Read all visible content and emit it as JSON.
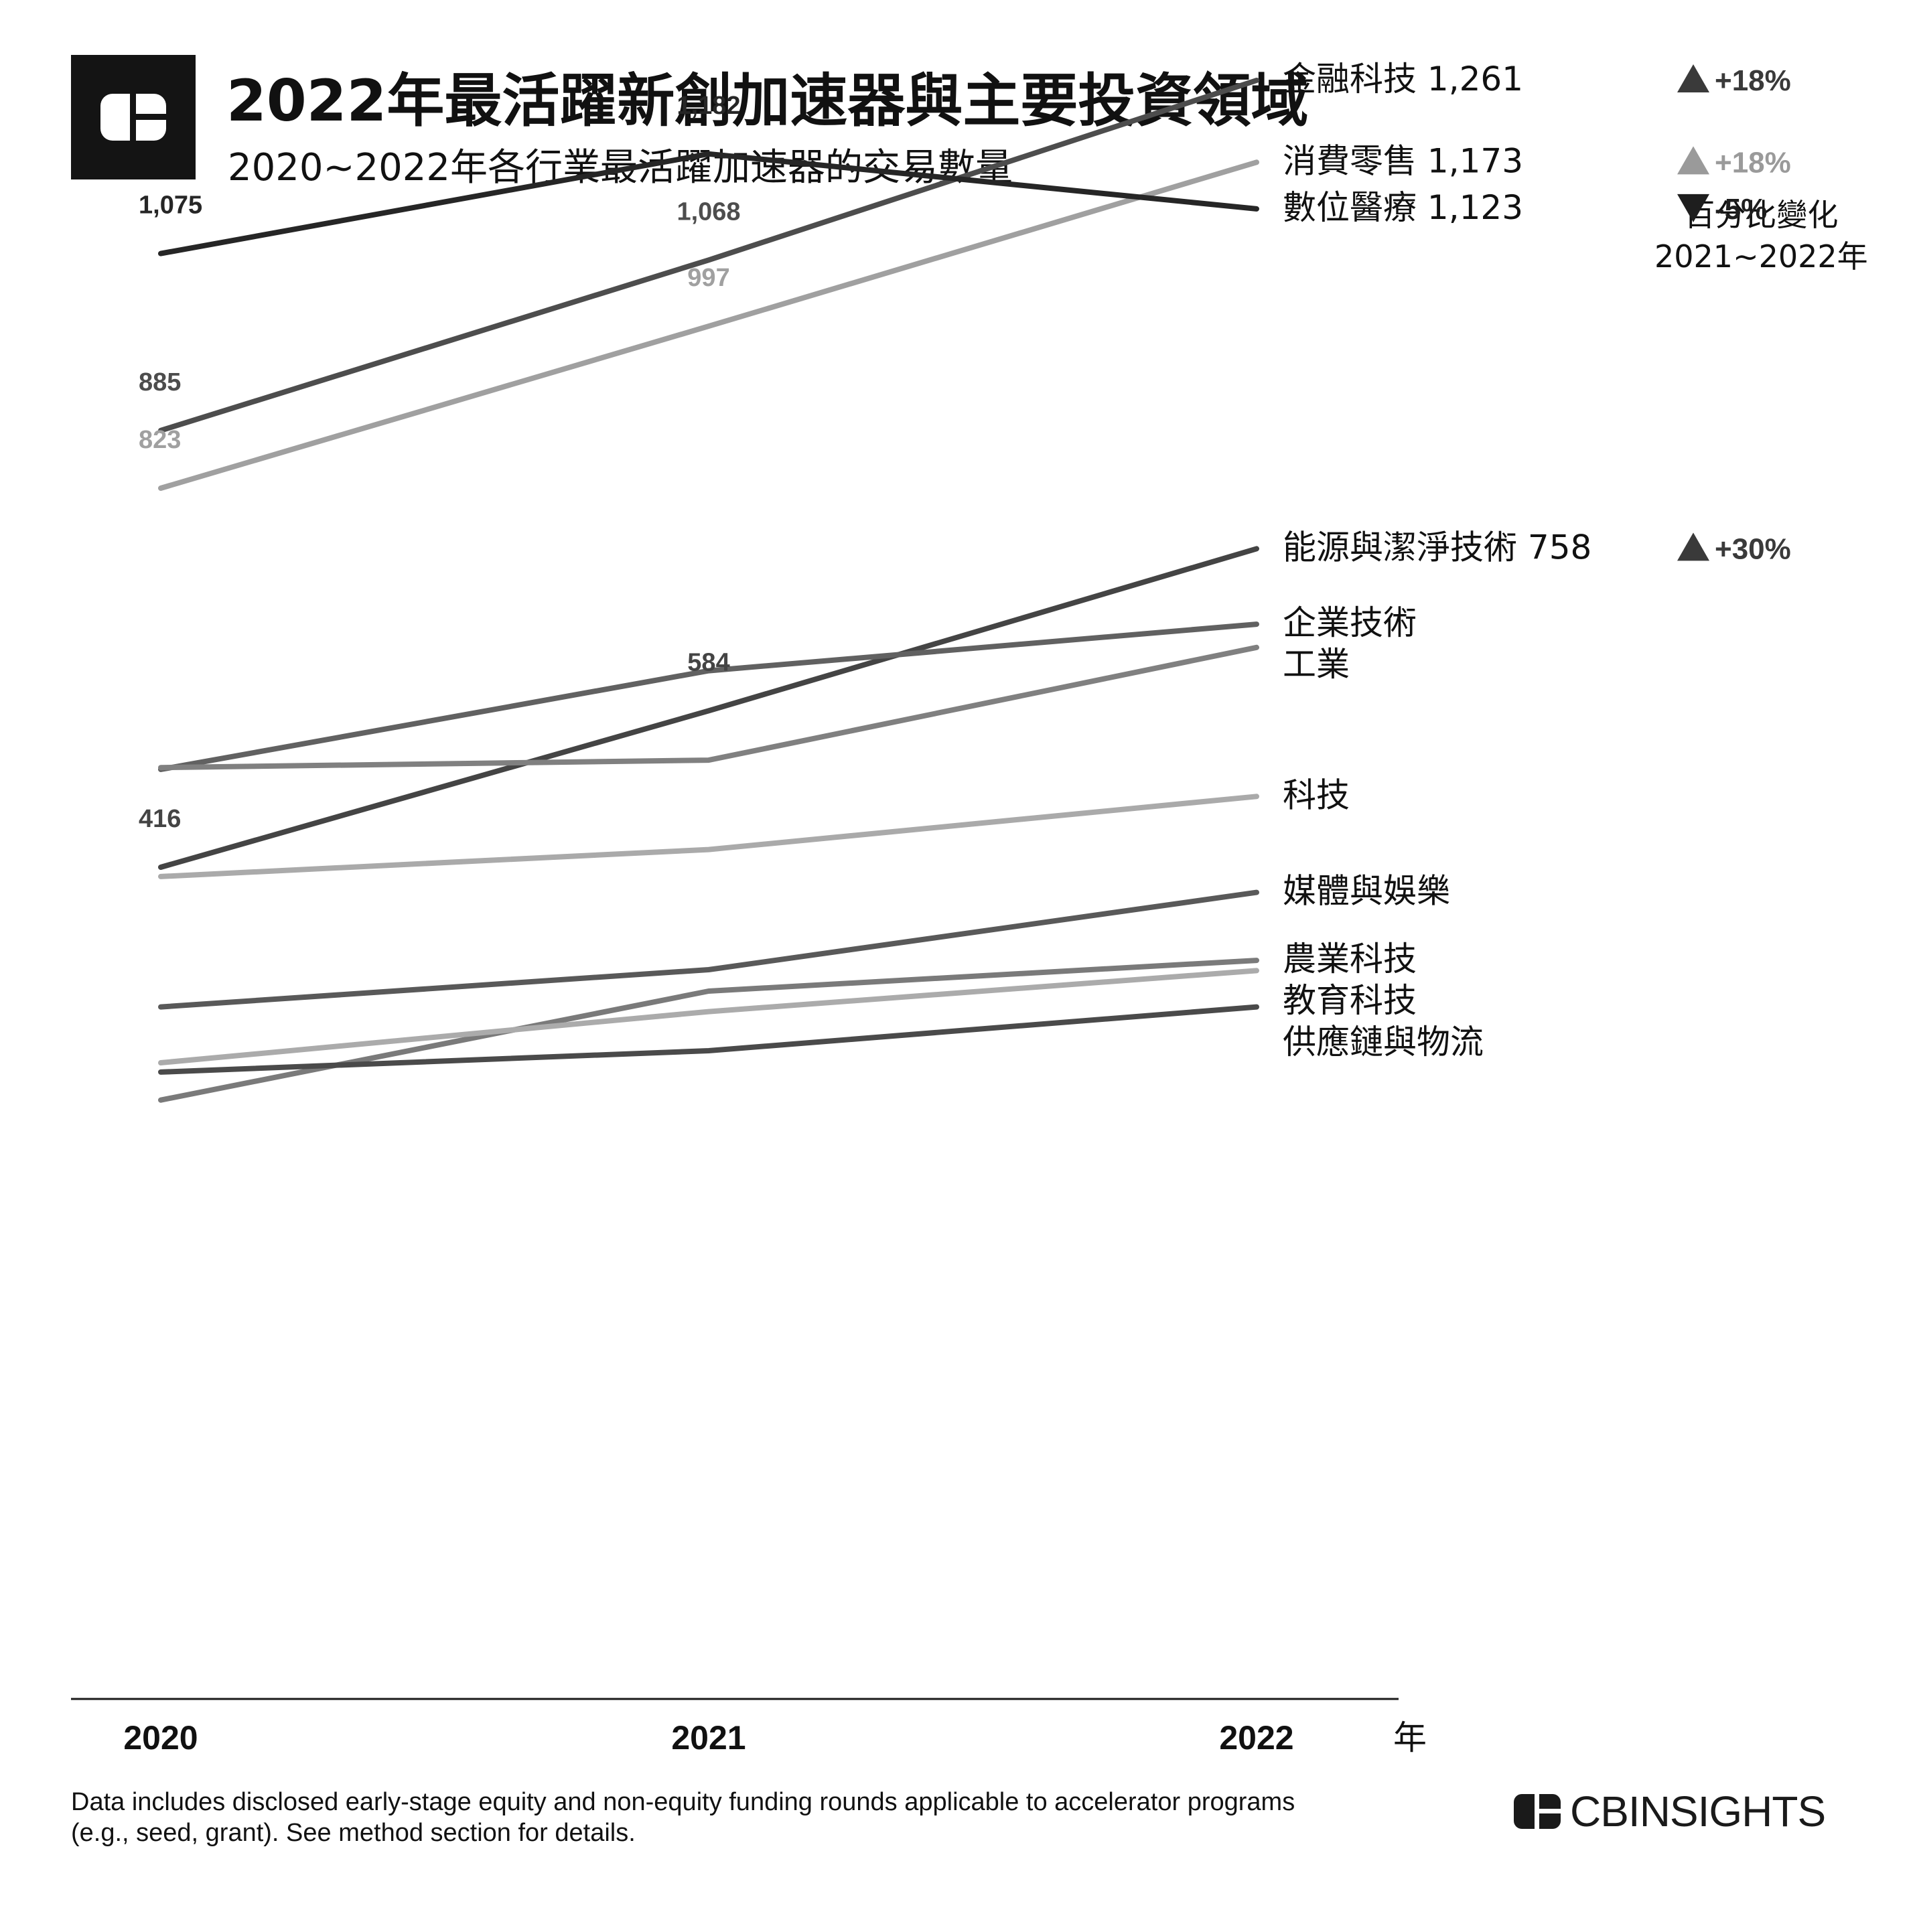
{
  "header": {
    "title": "2022年最活躍新創加速器與主要投資領域",
    "subtitle": "2020~2022年各行業最活躍加速器的交易數量"
  },
  "change_header": {
    "line1": "百分比變化",
    "line2": "2021~2022年"
  },
  "footnote": {
    "line1": "Data includes disclosed early-stage equity and non-equity funding rounds applicable to accelerator programs",
    "line2": "(e.g., seed, grant). See method section for details."
  },
  "brand": {
    "name": "CBINSIGHTS"
  },
  "chart_data": {
    "type": "line",
    "x": [
      "2020",
      "2021",
      "2022"
    ],
    "xlabel": "年",
    "ylim": [
      0,
      1300
    ],
    "series": [
      {
        "name": "金融科技",
        "end_label": "金融科技 1,261",
        "values": [
          885,
          1068,
          1261
        ],
        "labels": [
          "885",
          "1,068",
          ""
        ],
        "color": "#4d4d4d",
        "change": "+18%",
        "change_dir": "up",
        "change_color": "#3a3a3a"
      },
      {
        "name": "消費零售",
        "end_label": "消費零售 1,173",
        "values": [
          823,
          997,
          1173
        ],
        "labels": [
          "823",
          "997",
          ""
        ],
        "color": "#a0a0a0",
        "change": "+18%",
        "change_dir": "up",
        "change_color": "#9a9a9a"
      },
      {
        "name": "數位醫療",
        "end_label": "數位醫療 1,123",
        "values": [
          1075,
          1182,
          1123
        ],
        "labels": [
          "1,075",
          "1,182",
          ""
        ],
        "color": "#262626",
        "change": "-5%",
        "change_dir": "down",
        "change_color": "#1e1e1e"
      },
      {
        "name": "能源與潔淨技術",
        "end_label": "能源與潔淨技術 758",
        "values": [
          416,
          584,
          758
        ],
        "labels": [
          "416",
          "584",
          ""
        ],
        "color": "#444444",
        "change": "+30%",
        "change_dir": "up",
        "change_color": "#3a3a3a"
      },
      {
        "name": "企業技術",
        "end_label": "企業技術",
        "values": [
          521,
          627,
          677
        ],
        "labels": [
          "",
          "",
          ""
        ],
        "color": "#616161",
        "change": "",
        "change_dir": "",
        "change_color": ""
      },
      {
        "name": "工業",
        "end_label": "工業",
        "values": [
          523,
          531,
          652
        ],
        "labels": [
          "",
          "",
          ""
        ],
        "color": "#808080",
        "change": "",
        "change_dir": "",
        "change_color": ""
      },
      {
        "name": "科技",
        "end_label": "科技",
        "values": [
          406,
          435,
          492
        ],
        "labels": [
          "",
          "",
          ""
        ],
        "color": "#aaaaaa",
        "change": "",
        "change_dir": "",
        "change_color": ""
      },
      {
        "name": "媒體與娛樂",
        "end_label": "媒體與娛樂",
        "values": [
          266,
          306,
          389
        ],
        "labels": [
          "",
          "",
          ""
        ],
        "color": "#595959",
        "change": "",
        "change_dir": "",
        "change_color": ""
      },
      {
        "name": "農業科技",
        "end_label": "農業科技",
        "values": [
          166,
          283,
          316
        ],
        "labels": [
          "",
          "",
          ""
        ],
        "color": "#7a7a7a",
        "change": "",
        "change_dir": "",
        "change_color": ""
      },
      {
        "name": "教育科技",
        "end_label": "教育科技",
        "values": [
          206,
          261,
          305
        ],
        "labels": [
          "",
          "",
          ""
        ],
        "color": "#ababab",
        "change": "",
        "change_dir": "",
        "change_color": ""
      },
      {
        "name": "供應鏈與物流",
        "end_label": "供應鏈與物流",
        "values": [
          196,
          219,
          266
        ],
        "labels": [
          "",
          "",
          ""
        ],
        "color": "#4a4a4a",
        "change": "",
        "change_dir": "",
        "change_color": ""
      }
    ]
  }
}
